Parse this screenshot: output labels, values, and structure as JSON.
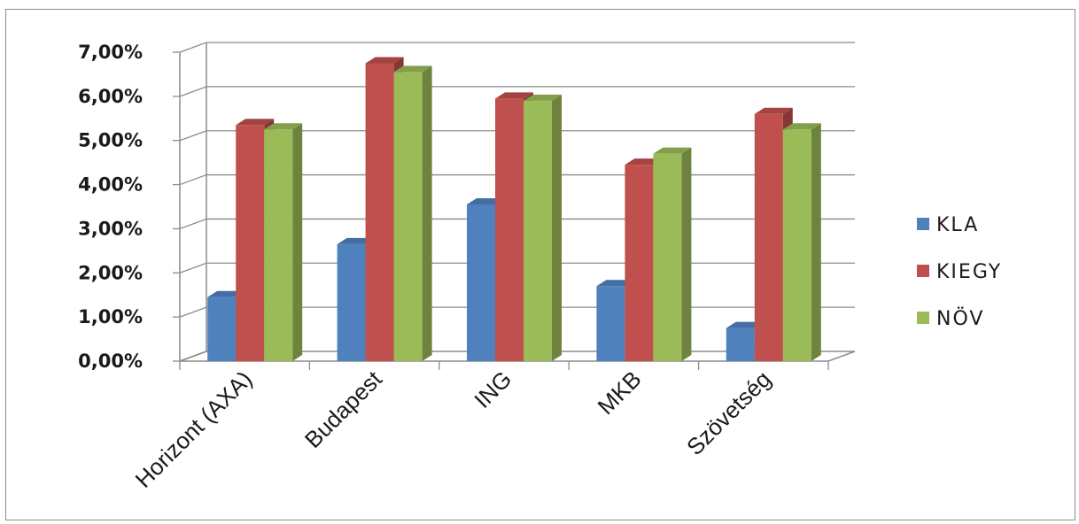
{
  "chart_data": {
    "type": "bar",
    "categories": [
      "Horizont (AXA)",
      "Budapest",
      "ING",
      "MKB",
      "Szövetség"
    ],
    "series": [
      {
        "name": "KLA",
        "values": [
          1.45,
          2.65,
          3.55,
          1.7,
          0.75
        ],
        "color": "#4f81bd"
      },
      {
        "name": "KIEGY",
        "values": [
          5.35,
          6.75,
          5.95,
          4.45,
          5.6
        ],
        "color": "#c0504d"
      },
      {
        "name": "NÖV",
        "values": [
          5.25,
          6.55,
          5.9,
          4.7,
          5.25
        ],
        "color": "#9bbb59"
      }
    ],
    "ylim": [
      0,
      7
    ],
    "yticks": [
      "0,00%",
      "1,00%",
      "2,00%",
      "3,00%",
      "4,00%",
      "5,00%",
      "6,00%",
      "7,00%"
    ],
    "grid": true,
    "legend_position": "right",
    "style": "3d-clustered-column"
  }
}
